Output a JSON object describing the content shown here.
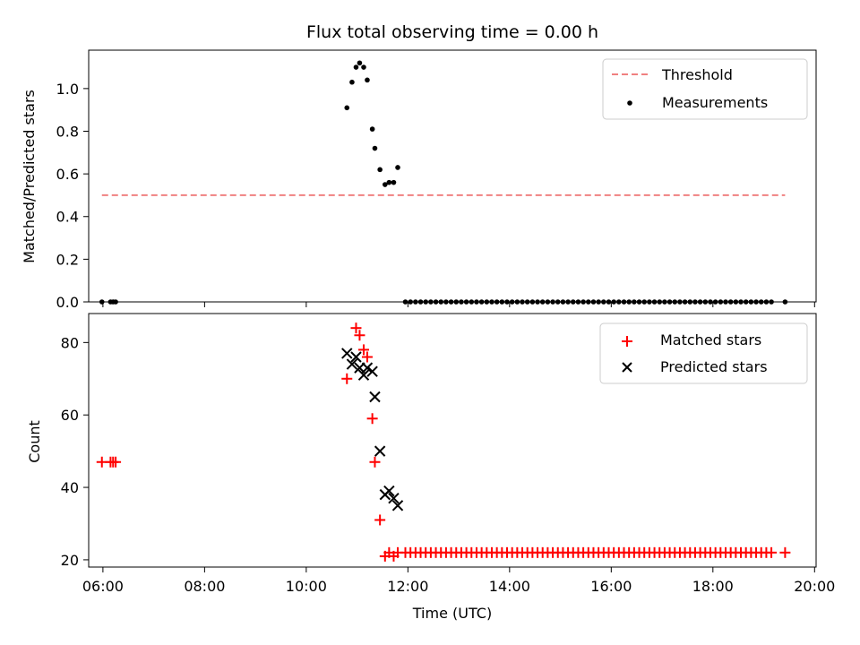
{
  "chart_data": [
    {
      "type": "scatter",
      "title": "Flux total observing time = 0.00 h",
      "xlabel": "",
      "ylabel": "Matched/Predicted stars",
      "ylim": [
        0.0,
        1.18
      ],
      "xlim": [
        5.72,
        20.03
      ],
      "yticks": [
        0.0,
        0.2,
        0.4,
        0.6,
        0.8,
        1.0
      ],
      "grid": false,
      "legend_position": "top-right",
      "series": [
        {
          "name": "Threshold",
          "kind": "line",
          "style": "dashed",
          "color": "#f08080",
          "x": [
            5.98,
            19.42
          ],
          "y": [
            0.5,
            0.5
          ]
        },
        {
          "name": "Measurements",
          "kind": "scatter",
          "marker": "dot",
          "color": "#000000",
          "x": [
            5.98,
            6.15,
            6.2,
            6.25,
            10.8,
            10.9,
            10.98,
            11.05,
            11.13,
            11.2,
            11.3,
            11.35,
            11.45,
            11.55,
            11.63,
            11.72,
            11.8,
            11.95,
            12.05,
            12.15,
            12.25,
            12.35,
            12.45,
            12.55,
            12.65,
            12.75,
            12.85,
            12.95,
            13.05,
            13.15,
            13.25,
            13.35,
            13.45,
            13.55,
            13.65,
            13.75,
            13.85,
            13.95,
            14.05,
            14.15,
            14.25,
            14.35,
            14.45,
            14.55,
            14.65,
            14.75,
            14.85,
            14.95,
            15.05,
            15.15,
            15.25,
            15.35,
            15.45,
            15.55,
            15.65,
            15.75,
            15.85,
            15.95,
            16.05,
            16.15,
            16.25,
            16.35,
            16.45,
            16.55,
            16.65,
            16.75,
            16.85,
            16.95,
            17.05,
            17.15,
            17.25,
            17.35,
            17.45,
            17.55,
            17.65,
            17.75,
            17.85,
            17.95,
            18.05,
            18.15,
            18.25,
            18.35,
            18.45,
            18.55,
            18.65,
            18.75,
            18.85,
            18.95,
            19.05,
            19.15,
            19.42
          ],
          "y": [
            0.0,
            0.0,
            0.0,
            0.0,
            0.91,
            1.03,
            1.1,
            1.12,
            1.1,
            1.04,
            0.81,
            0.72,
            0.62,
            0.55,
            0.56,
            0.56,
            0.63,
            0.0,
            0.0,
            0.0,
            0.0,
            0.0,
            0.0,
            0.0,
            0.0,
            0.0,
            0.0,
            0.0,
            0.0,
            0.0,
            0.0,
            0.0,
            0.0,
            0.0,
            0.0,
            0.0,
            0.0,
            0.0,
            0.0,
            0.0,
            0.0,
            0.0,
            0.0,
            0.0,
            0.0,
            0.0,
            0.0,
            0.0,
            0.0,
            0.0,
            0.0,
            0.0,
            0.0,
            0.0,
            0.0,
            0.0,
            0.0,
            0.0,
            0.0,
            0.0,
            0.0,
            0.0,
            0.0,
            0.0,
            0.0,
            0.0,
            0.0,
            0.0,
            0.0,
            0.0,
            0.0,
            0.0,
            0.0,
            0.0,
            0.0,
            0.0,
            0.0,
            0.0,
            0.0,
            0.0,
            0.0,
            0.0,
            0.0,
            0.0,
            0.0,
            0.0,
            0.0,
            0.0,
            0.0,
            0.0,
            0.0
          ]
        }
      ]
    },
    {
      "type": "scatter",
      "title": "",
      "xlabel": "Time (UTC)",
      "ylabel": "Count",
      "ylim": [
        18,
        88
      ],
      "xlim": [
        5.72,
        20.03
      ],
      "yticks": [
        20,
        40,
        60,
        80
      ],
      "xticks": [
        6,
        8,
        10,
        12,
        14,
        16,
        18,
        20
      ],
      "xtick_labels": [
        "06:00",
        "08:00",
        "10:00",
        "12:00",
        "14:00",
        "16:00",
        "18:00",
        "20:00"
      ],
      "grid": false,
      "legend_position": "top-right",
      "series": [
        {
          "name": "Matched stars",
          "kind": "scatter",
          "marker": "plus",
          "color": "#ff0000",
          "x": [
            5.98,
            6.15,
            6.2,
            6.25,
            10.8,
            10.98,
            11.05,
            11.13,
            11.2,
            11.3,
            11.35,
            11.45,
            11.55,
            11.63,
            11.72,
            11.8,
            11.95,
            12.05,
            12.15,
            12.25,
            12.35,
            12.45,
            12.55,
            12.65,
            12.75,
            12.85,
            12.95,
            13.05,
            13.15,
            13.25,
            13.35,
            13.45,
            13.55,
            13.65,
            13.75,
            13.85,
            13.95,
            14.05,
            14.15,
            14.25,
            14.35,
            14.45,
            14.55,
            14.65,
            14.75,
            14.85,
            14.95,
            15.05,
            15.15,
            15.25,
            15.35,
            15.45,
            15.55,
            15.65,
            15.75,
            15.85,
            15.95,
            16.05,
            16.15,
            16.25,
            16.35,
            16.45,
            16.55,
            16.65,
            16.75,
            16.85,
            16.95,
            17.05,
            17.15,
            17.25,
            17.35,
            17.45,
            17.55,
            17.65,
            17.75,
            17.85,
            17.95,
            18.05,
            18.15,
            18.25,
            18.35,
            18.45,
            18.55,
            18.65,
            18.75,
            18.85,
            18.95,
            19.05,
            19.15,
            19.42
          ],
          "y": [
            47,
            47,
            47,
            47,
            70,
            84,
            82,
            78,
            76,
            59,
            47,
            31,
            21,
            22,
            21,
            22,
            22,
            22,
            22,
            22,
            22,
            22,
            22,
            22,
            22,
            22,
            22,
            22,
            22,
            22,
            22,
            22,
            22,
            22,
            22,
            22,
            22,
            22,
            22,
            22,
            22,
            22,
            22,
            22,
            22,
            22,
            22,
            22,
            22,
            22,
            22,
            22,
            22,
            22,
            22,
            22,
            22,
            22,
            22,
            22,
            22,
            22,
            22,
            22,
            22,
            22,
            22,
            22,
            22,
            22,
            22,
            22,
            22,
            22,
            22,
            22,
            22,
            22,
            22,
            22,
            22,
            22,
            22,
            22,
            22,
            22,
            22,
            22,
            22,
            22
          ]
        },
        {
          "name": "Predicted stars",
          "kind": "scatter",
          "marker": "x",
          "color": "#000000",
          "x": [
            10.8,
            10.9,
            10.98,
            11.05,
            11.13,
            11.2,
            11.3,
            11.35,
            11.45,
            11.55,
            11.63,
            11.72,
            11.8
          ],
          "y": [
            77,
            74,
            76,
            73,
            71,
            73,
            72,
            65,
            50,
            38,
            39,
            37,
            35
          ]
        }
      ]
    }
  ]
}
